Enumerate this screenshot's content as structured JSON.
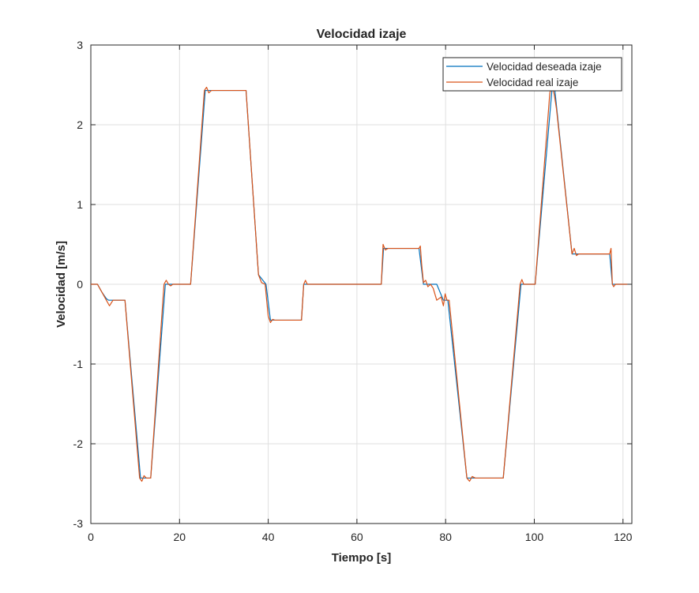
{
  "chart_data": {
    "type": "line",
    "title": "Velocidad izaje",
    "xlabel": "Tiempo [s]",
    "ylabel": "Velocidad [m/s]",
    "xlim": [
      0,
      122
    ],
    "ylim": [
      -3,
      3
    ],
    "xticks": [
      0,
      20,
      40,
      60,
      80,
      100,
      120
    ],
    "yticks": [
      -3,
      -2,
      -1,
      0,
      1,
      2,
      3
    ],
    "grid": true,
    "legend_position": "top-right",
    "series": [
      {
        "name": "Velocidad deseada izaje",
        "color": "#0072BD",
        "x": [
          0,
          1.5,
          2.5,
          3.5,
          4.0,
          7.7,
          11.2,
          13.5,
          16.8,
          22.5,
          25.8,
          35.0,
          37.8,
          39.5,
          40.5,
          47.5,
          48.0,
          65.5,
          66.0,
          74.0,
          75.0,
          78.0,
          79.5,
          80.5,
          84.8,
          93.0,
          97.0,
          100.2,
          104.0,
          104.6,
          108.5,
          109.5,
          117.0,
          117.6,
          121.0
        ],
        "y": [
          0,
          0,
          -0.1,
          -0.18,
          -0.2,
          -0.2,
          -2.43,
          -2.43,
          0,
          0,
          2.43,
          2.43,
          0.12,
          0,
          -0.45,
          -0.45,
          0,
          0,
          0.45,
          0.45,
          0,
          0,
          -0.2,
          -0.2,
          -2.43,
          -2.43,
          0,
          0,
          2.45,
          2.45,
          0.38,
          0.38,
          0.38,
          0,
          0
        ]
      },
      {
        "name": "Velocidad real izaje",
        "color": "#D95319",
        "x": [
          0,
          1.5,
          2.5,
          3.5,
          4.2,
          5.0,
          5.8,
          7.7,
          11.0,
          11.5,
          12.0,
          12.5,
          13.5,
          16.5,
          17.0,
          17.5,
          18.0,
          18.5,
          22.5,
          25.6,
          26.1,
          26.6,
          27.2,
          35.0,
          37.8,
          38.5,
          39.3,
          40.0,
          40.5,
          41.0,
          41.5,
          47.5,
          48.0,
          48.4,
          48.8,
          49.5,
          65.5,
          65.9,
          66.4,
          67.0,
          74.0,
          74.3,
          74.6,
          75.0,
          75.5,
          76.0,
          76.6,
          77.2,
          78.0,
          79.0,
          79.5,
          79.9,
          80.3,
          80.8,
          84.8,
          85.4,
          86.0,
          86.7,
          93.0,
          96.8,
          97.2,
          97.6,
          98.2,
          100.2,
          103.5,
          104.0,
          104.5,
          105.0,
          108.5,
          109.0,
          109.5,
          110.0,
          110.5,
          117.0,
          117.3,
          117.6,
          117.9,
          118.3,
          118.8,
          121.0
        ],
        "y": [
          0,
          0,
          -0.1,
          -0.2,
          -0.27,
          -0.2,
          -0.2,
          -0.2,
          -2.43,
          -2.47,
          -2.4,
          -2.43,
          -2.43,
          0,
          0.05,
          0.0,
          -0.02,
          0,
          0,
          2.43,
          2.47,
          2.4,
          2.43,
          2.43,
          0.12,
          0.02,
          0.0,
          -0.4,
          -0.48,
          -0.44,
          -0.45,
          -0.45,
          0,
          0.05,
          0.0,
          0,
          0,
          0.5,
          0.43,
          0.45,
          0.45,
          0.48,
          0.25,
          0.02,
          0.05,
          -0.03,
          0.0,
          -0.05,
          -0.2,
          -0.16,
          -0.27,
          -0.12,
          -0.2,
          -0.2,
          -2.43,
          -2.47,
          -2.41,
          -2.43,
          -2.43,
          0,
          0.06,
          0.0,
          0,
          0,
          2.4,
          2.5,
          2.38,
          2.2,
          0.38,
          0.45,
          0.36,
          0.38,
          0.38,
          0.38,
          0.45,
          0.0,
          -0.03,
          0.0,
          0,
          0
        ]
      }
    ]
  }
}
